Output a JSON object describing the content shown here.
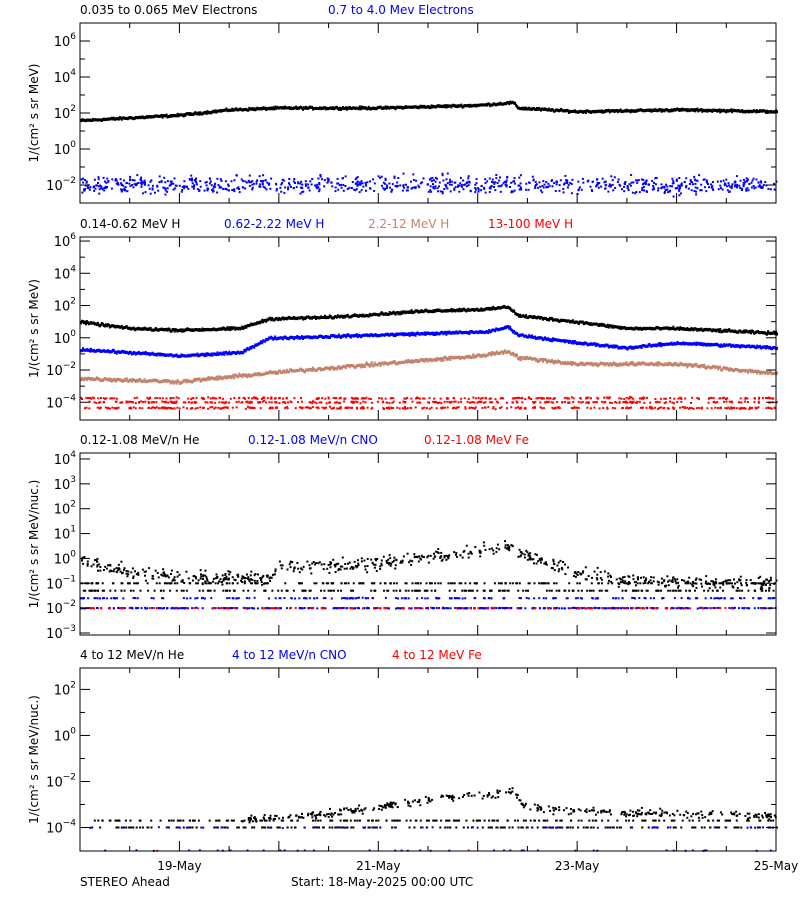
{
  "footer": {
    "left": "STEREO Ahead",
    "center": "Start: 18-May-2025 00:00 UTC"
  },
  "colors": {
    "black": "#000000",
    "blue": "#0000ff",
    "brown": "#c4836c",
    "red": "#ff0000"
  },
  "chart_data": [
    {
      "type": "scatter",
      "title_entries": [
        {
          "text": "0.035 to 0.065 MeV Electrons",
          "color": "#000000"
        },
        {
          "text": "0.7 to 4.0 Mev Electrons",
          "color": "#0000ff"
        }
      ],
      "ylabel": "1/(cm² s sr MeV)",
      "yscale": "log",
      "ylim_log10": [
        -3,
        7
      ],
      "yticks_log10": [
        6,
        4,
        2,
        0,
        -2
      ],
      "xlim_days": [
        0,
        7
      ],
      "series": [
        {
          "name": "0.035 to 0.065 MeV Electrons",
          "color": "#000000",
          "style": "line",
          "log10_curve": [
            [
              0,
              1.6
            ],
            [
              1,
              1.9
            ],
            [
              1.5,
              2.2
            ],
            [
              2,
              2.3
            ],
            [
              3,
              2.3
            ],
            [
              4,
              2.45
            ],
            [
              4.35,
              2.6
            ],
            [
              4.4,
              2.3
            ],
            [
              5,
              2.1
            ],
            [
              6,
              2.2
            ],
            [
              7,
              2.1
            ]
          ],
          "noise": 0.04,
          "n": 700
        },
        {
          "name": "0.7 to 4.0 Mev Electrons",
          "color": "#0000ff",
          "style": "scatter",
          "log10_curve": [
            [
              0,
              -2.0
            ],
            [
              7,
              -2.0
            ]
          ],
          "noise": 0.35,
          "n": 900
        }
      ]
    },
    {
      "type": "scatter",
      "title_entries": [
        {
          "text": "0.14-0.62 MeV H",
          "color": "#000000"
        },
        {
          "text": "0.62-2.22 MeV H",
          "color": "#0000ff"
        },
        {
          "text": "2.2-12 MeV H",
          "color": "#c4836c"
        },
        {
          "text": "13-100 MeV H",
          "color": "#ff0000"
        }
      ],
      "ylabel": "1/(cm² s sr MeV)",
      "yscale": "log",
      "ylim_log10": [
        -5.1,
        6.25
      ],
      "yticks_log10": [
        6,
        4,
        2,
        0,
        -2,
        -4
      ],
      "xlim_days": [
        0,
        7
      ],
      "series": [
        {
          "name": "0.14-0.62 MeV H",
          "color": "#000000",
          "style": "line",
          "log10_curve": [
            [
              0,
              1.0
            ],
            [
              0.5,
              0.6
            ],
            [
              1,
              0.5
            ],
            [
              1.6,
              0.6
            ],
            [
              1.9,
              1.2
            ],
            [
              2.5,
              1.3
            ],
            [
              3,
              1.5
            ],
            [
              3.5,
              1.7
            ],
            [
              4.1,
              1.8
            ],
            [
              4.3,
              1.95
            ],
            [
              4.4,
              1.4
            ],
            [
              5,
              1.0
            ],
            [
              5.5,
              0.6
            ],
            [
              6,
              0.6
            ],
            [
              7,
              0.3
            ]
          ],
          "noise": 0.05,
          "n": 700
        },
        {
          "name": "0.62-2.22 MeV H",
          "color": "#0000ff",
          "style": "line",
          "log10_curve": [
            [
              0,
              -0.7
            ],
            [
              1,
              -1.1
            ],
            [
              1.6,
              -0.9
            ],
            [
              1.9,
              0.0
            ],
            [
              3,
              0.2
            ],
            [
              4.1,
              0.4
            ],
            [
              4.3,
              0.7
            ],
            [
              4.4,
              0.2
            ],
            [
              5,
              -0.3
            ],
            [
              5.5,
              -0.6
            ],
            [
              6,
              -0.3
            ],
            [
              7,
              -0.6
            ]
          ],
          "noise": 0.05,
          "n": 700
        },
        {
          "name": "2.2-12 MeV H",
          "color": "#c4836c",
          "style": "line",
          "log10_curve": [
            [
              0,
              -2.5
            ],
            [
              1,
              -2.7
            ],
            [
              2,
              -2.1
            ],
            [
              3,
              -1.6
            ],
            [
              4,
              -1.1
            ],
            [
              4.3,
              -0.8
            ],
            [
              4.4,
              -1.2
            ],
            [
              5,
              -1.6
            ],
            [
              6,
              -1.6
            ],
            [
              7,
              -2.2
            ]
          ],
          "noise": 0.07,
          "n": 700
        },
        {
          "name": "13-100 MeV H",
          "color": "#ff0000",
          "style": "bands",
          "bands_log10": [
            -3.75,
            -4.0,
            -4.35
          ],
          "noise": 0.04,
          "n": 900
        }
      ]
    },
    {
      "type": "scatter",
      "title_entries": [
        {
          "text": "0.12-1.08 MeV/n He",
          "color": "#000000"
        },
        {
          "text": "0.12-1.08 MeV/n CNO",
          "color": "#0000ff"
        },
        {
          "text": "0.12-1.08 MeV Fe",
          "color": "#ff0000"
        }
      ],
      "ylabel": "1/(cm² s sr MeV/nuc.)",
      "yscale": "log",
      "ylim_log10": [
        -3.08,
        4.24
      ],
      "yticks_log10": [
        4,
        3,
        2,
        1,
        0,
        -1,
        -2,
        -3
      ],
      "xlim_days": [
        0,
        7
      ],
      "series": [
        {
          "name": "0.12-1.08 MeV/n He",
          "color": "#000000",
          "style": "scatter",
          "log10_curve": [
            [
              0,
              -0.1
            ],
            [
              0.3,
              -0.4
            ],
            [
              0.6,
              -0.6
            ],
            [
              1.2,
              -0.8
            ],
            [
              1.9,
              -0.8
            ],
            [
              2.0,
              -0.35
            ],
            [
              3,
              -0.2
            ],
            [
              4,
              0.3
            ],
            [
              4.3,
              0.5
            ],
            [
              4.4,
              0.2
            ],
            [
              5,
              -0.6
            ],
            [
              5.5,
              -0.9
            ],
            [
              7,
              -1.0
            ]
          ],
          "noise": 0.18,
          "n": 650,
          "floors_log10": [
            -1.0,
            -1.3
          ]
        },
        {
          "name": "0.12-1.08 MeV/n CNO",
          "color": "#0000ff",
          "style": "bands",
          "bands_log10": [
            -2.0,
            -2.0,
            -1.6
          ],
          "noise": 0.01,
          "n": 600
        },
        {
          "name": "0.12-1.08 MeV Fe",
          "color": "#ff0000",
          "style": "bands",
          "bands_log10": [
            -2.0
          ],
          "noise": 0.01,
          "n": 120
        }
      ]
    },
    {
      "type": "scatter",
      "title_entries": [
        {
          "text": "4 to 12 MeV/n He",
          "color": "#000000"
        },
        {
          "text": "4 to 12 MeV/n CNO",
          "color": "#0000ff"
        },
        {
          "text": "4 to 12 MeV Fe",
          "color": "#ff0000"
        }
      ],
      "ylabel": "1/(cm² s sr MeV/nuc.)",
      "yscale": "log",
      "ylim_log10": [
        -5.02,
        2.93
      ],
      "yticks_log10": [
        2,
        0,
        -2,
        -4
      ],
      "xlim_days": [
        0,
        7
      ],
      "xtick_labels": [
        {
          "day": 1,
          "label": "19-May"
        },
        {
          "day": 3,
          "label": "21-May"
        },
        {
          "day": 5,
          "label": "23-May"
        },
        {
          "day": 7,
          "label": "25-May"
        }
      ],
      "series": [
        {
          "name": "4 to 12 MeV/n He",
          "color": "#000000",
          "style": "scatter",
          "log10_curve": [
            [
              1.6,
              -3.7
            ],
            [
              2.5,
              -3.4
            ],
            [
              3,
              -3.1
            ],
            [
              3.5,
              -2.8
            ],
            [
              4.2,
              -2.5
            ],
            [
              4.35,
              -2.4
            ],
            [
              4.45,
              -3.1
            ],
            [
              5,
              -3.3
            ],
            [
              6,
              -3.4
            ],
            [
              7,
              -3.5
            ]
          ],
          "noise": 0.12,
          "n": 500,
          "floors_log10": [
            -4.0,
            -3.7
          ],
          "floor_start": 0.1
        },
        {
          "name": "4 to 12 MeV/n CNO",
          "color": "#0000ff",
          "style": "bands",
          "bands_log10": [
            -5.0,
            -4.0
          ],
          "noise": 0.01,
          "n": 90
        },
        {
          "name": "4 to 12 MeV Fe",
          "color": "#ff0000",
          "style": "bands",
          "bands_log10": [
            -5.0
          ],
          "noise": 0.01,
          "n": 2
        }
      ]
    }
  ]
}
